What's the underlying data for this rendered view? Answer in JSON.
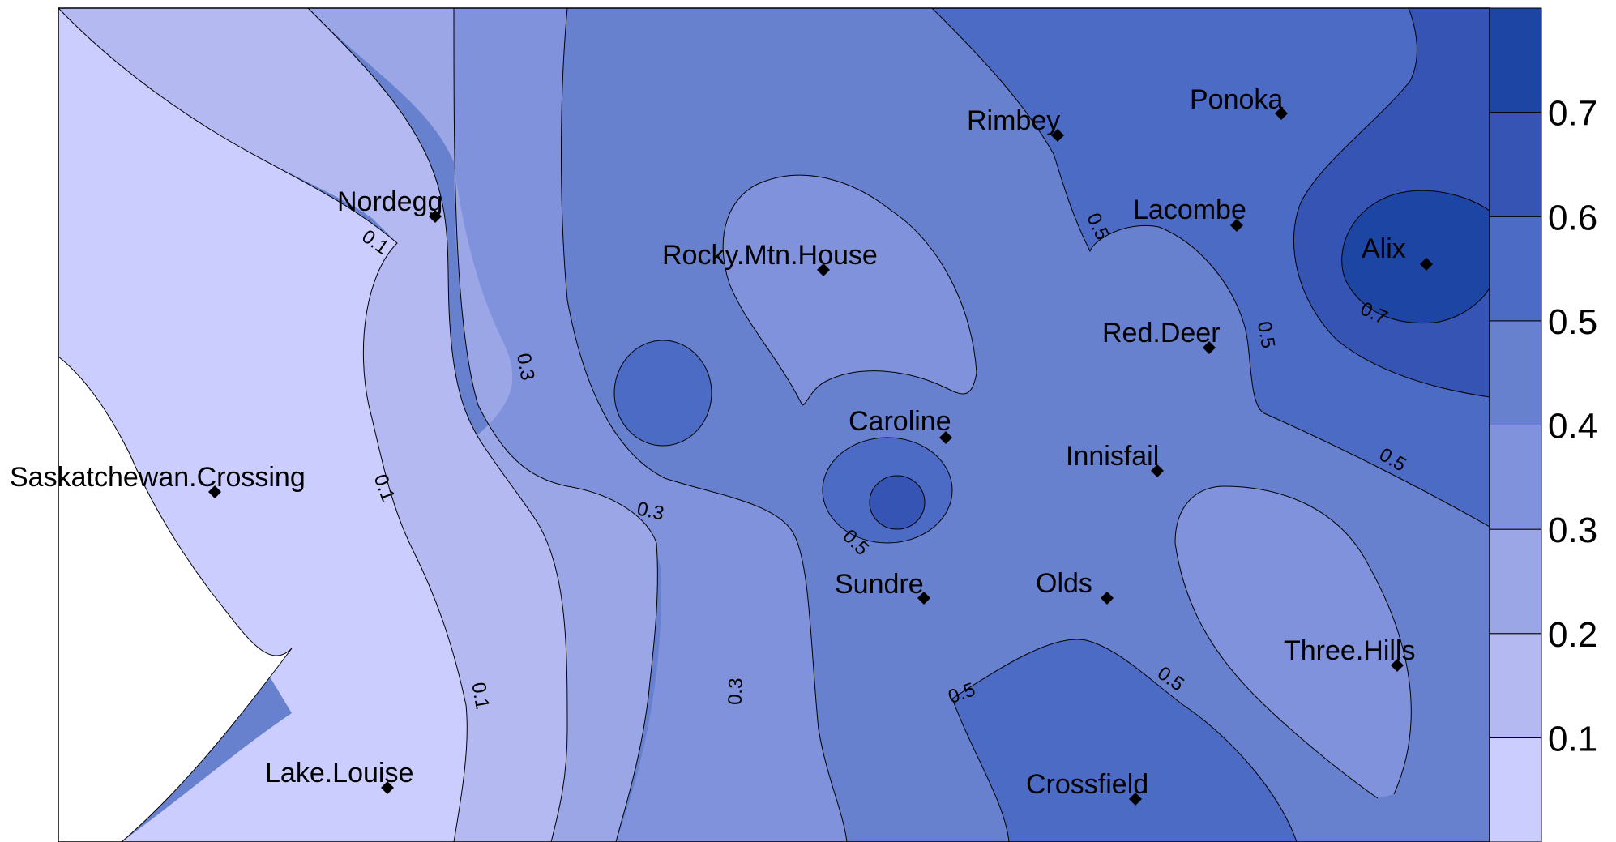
{
  "chart_data": {
    "type": "contour",
    "title": "",
    "xlabel": "",
    "ylabel": "",
    "colors": {
      "band_0_0_1": "#cccdff",
      "band_0_1_0_2": "#b4b9f2",
      "band_0_2_0_3": "#9aa6e6",
      "band_0_3_0_4": "#8092db",
      "band_0_4_0_5": "#6881cf",
      "band_0_5_0_6": "#4c6bc4",
      "band_0_6_0_7": "#3554b4",
      "band_0_7_plus": "#1d45a4",
      "line": "#000000",
      "marker": "#000000"
    },
    "legend": {
      "placement": "right",
      "levels": [
        0.0,
        0.1,
        0.2,
        0.3,
        0.4,
        0.5,
        0.6,
        0.7,
        0.8
      ],
      "tick_labels": [
        "0.1",
        "0.2",
        "0.3",
        "0.4",
        "0.5",
        "0.6",
        "0.7"
      ]
    },
    "contour_labels": [
      "0.1",
      "0.1",
      "0.1",
      "0.3",
      "0.3",
      "0.3",
      "0.5",
      "0.5",
      "0.5",
      "0.5",
      "0.5",
      "0.5",
      "0.7"
    ],
    "stations": [
      {
        "name": "Ponoka"
      },
      {
        "name": "Rimbey"
      },
      {
        "name": "Nordegg"
      },
      {
        "name": "Lacombe"
      },
      {
        "name": "Rocky.Mtn.House"
      },
      {
        "name": "Alix"
      },
      {
        "name": "Red.Deer"
      },
      {
        "name": "Caroline"
      },
      {
        "name": "Innisfail"
      },
      {
        "name": "Saskatchewan.Crossing"
      },
      {
        "name": "Sundre"
      },
      {
        "name": "Olds"
      },
      {
        "name": "Three.Hills"
      },
      {
        "name": "Lake.Louise"
      },
      {
        "name": "Crossfield"
      }
    ]
  }
}
